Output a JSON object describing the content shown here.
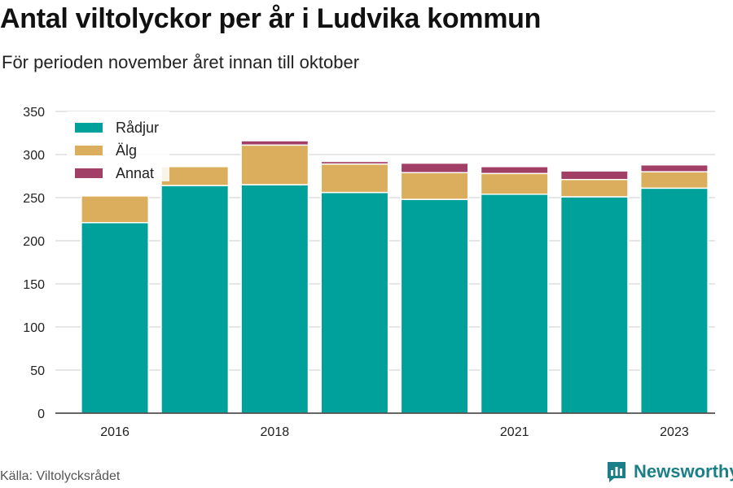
{
  "header": {
    "title": "Antal viltolyckor per år i Ludvika kommun",
    "subtitle": "För perioden november året innan till oktober"
  },
  "footer": {
    "source": "Källa: Viltolycksrådet",
    "brand": "Newsworthy"
  },
  "icons": {
    "brand": "newsworthy-logo-icon"
  },
  "chart_data": {
    "type": "bar",
    "stacked": true,
    "categories": [
      "2016",
      "2017",
      "2018",
      "2019",
      "2020",
      "2021",
      "2022",
      "2023"
    ],
    "x_tick_labels": [
      "2016",
      "",
      "2018",
      "",
      "",
      "2021",
      "",
      "2023"
    ],
    "series": [
      {
        "name": "Rådjur",
        "color": "#00a19a",
        "values": [
          221,
          264,
          265,
          256,
          248,
          254,
          251,
          261
        ]
      },
      {
        "name": "Älg",
        "color": "#dbae5d",
        "values": [
          31,
          22,
          46,
          33,
          31,
          24,
          20,
          19
        ]
      },
      {
        "name": "Annat",
        "color": "#a13f67",
        "values": [
          0,
          0,
          5,
          3,
          11,
          8,
          10,
          8
        ]
      }
    ],
    "ylim": [
      0,
      350
    ],
    "yticks": [
      0,
      50,
      100,
      150,
      200,
      250,
      300,
      350
    ],
    "grid": true,
    "legend_position": "top-left"
  }
}
